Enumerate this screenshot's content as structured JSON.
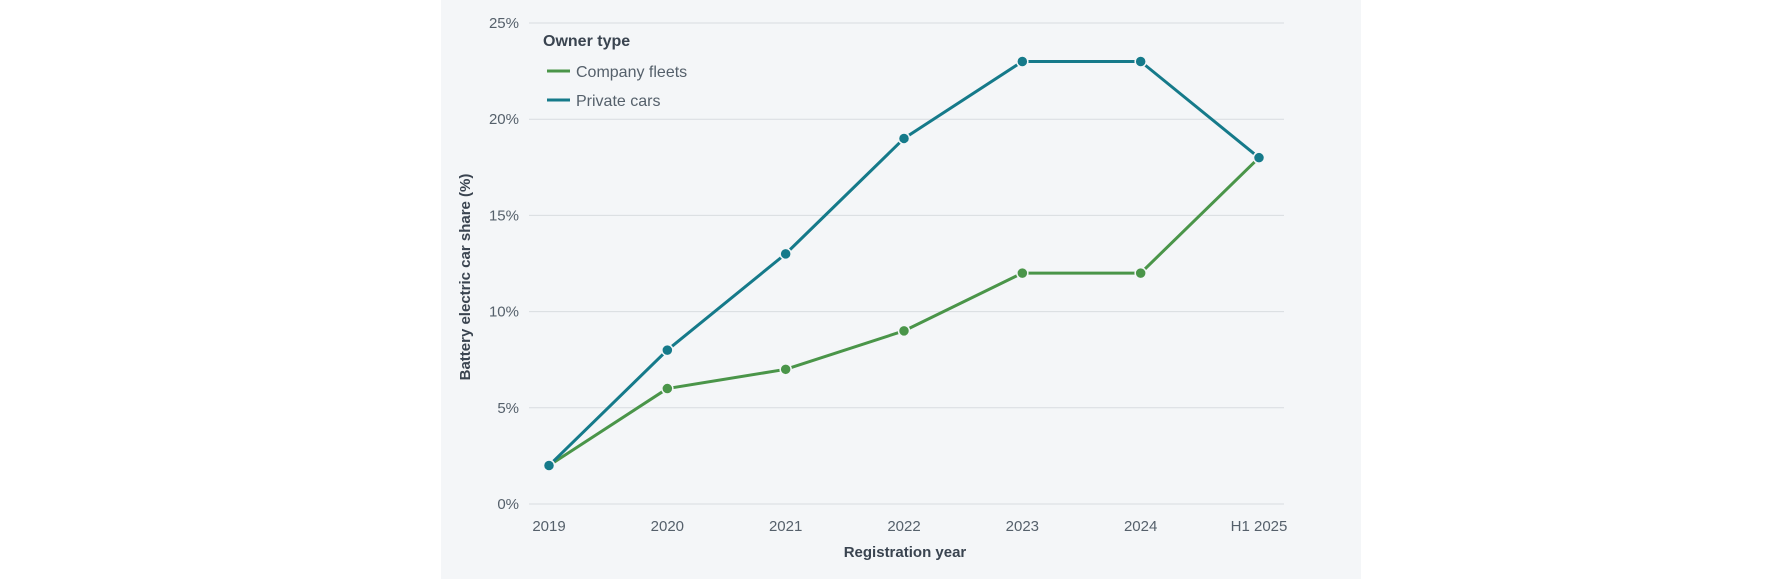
{
  "chart_data": {
    "type": "line",
    "categories": [
      "2019",
      "2020",
      "2021",
      "2022",
      "2023",
      "2024",
      "H1 2025"
    ],
    "series": [
      {
        "name": "Company fleets",
        "color": "#4a9549",
        "values": [
          2,
          6,
          7,
          9,
          12,
          12,
          18
        ]
      },
      {
        "name": "Private cars",
        "color": "#157a8a",
        "values": [
          2,
          8,
          13,
          19,
          23,
          23,
          18
        ]
      }
    ],
    "xlabel": "Registration year",
    "ylabel": "Battery electric car share (%)",
    "ylim": [
      0,
      25
    ],
    "yticks": [
      0,
      5,
      10,
      15,
      20,
      25
    ],
    "ytick_labels": [
      "0%",
      "5%",
      "10%",
      "15%",
      "20%",
      "25%"
    ],
    "legend": {
      "title": "Owner type",
      "placement": "top-left"
    },
    "grid": true,
    "colors": {
      "background": "#f4f6f8",
      "grid": "#d8dce0",
      "text": "#55606b"
    }
  }
}
